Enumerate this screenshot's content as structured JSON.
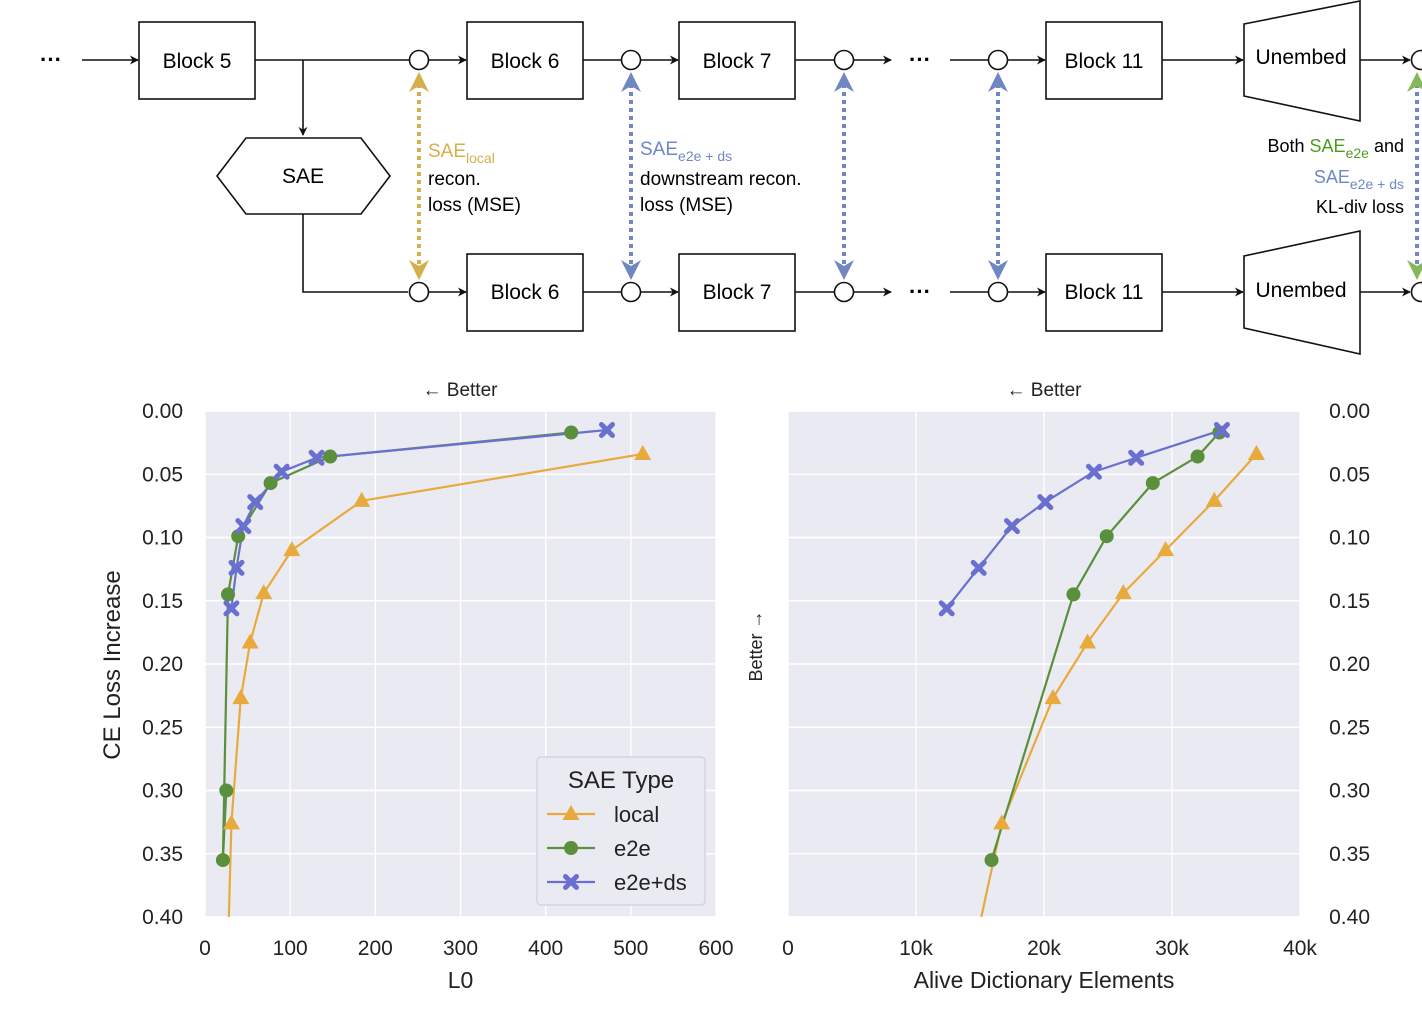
{
  "diagram": {
    "ellipsis": "···",
    "top_blocks": [
      "Block 5",
      "Block 6",
      "Block 7",
      "Block 11"
    ],
    "bottom_blocks": [
      "Block 6",
      "Block 7",
      "Block 11"
    ],
    "unembed": "Unembed",
    "sae": "SAE",
    "ann_local": {
      "main": "SAE",
      "sub": "local",
      "line2": "recon.",
      "line3": "loss (MSE)"
    },
    "ann_ds": {
      "main": "SAE",
      "sub": "e2e + ds",
      "line2": "downstream recon.",
      "line3": "loss (MSE)"
    },
    "ann_kl": {
      "both": "Both",
      "sae_e2e": "SAE",
      "sub_e2e": "e2e",
      "and": "and",
      "sae_ds": "SAE",
      "sub_ds": "e2e + ds",
      "line3": "KL-div loss"
    },
    "colors": {
      "local": "#d4b04a",
      "ds": "#6f88c4",
      "e2e": "#6fa83a",
      "green_text": "#4e9c1c"
    }
  },
  "labels": {
    "better_left": "← Better",
    "better_right": "← Better",
    "better_vertical": "Better →"
  },
  "chart_data": [
    {
      "type": "line",
      "xlabel": "L0",
      "ylabel": "CE Loss Increase",
      "xlim": [
        0,
        600
      ],
      "ylim": [
        0.4,
        0.0
      ],
      "y_inverted": true,
      "grid": true,
      "xticks": [
        "0",
        "100",
        "200",
        "300",
        "400",
        "500",
        "600"
      ],
      "xtick_values": [
        0,
        100,
        200,
        300,
        400,
        500,
        600
      ],
      "yticks": [
        "0.00",
        "0.05",
        "0.10",
        "0.15",
        "0.20",
        "0.25",
        "0.30",
        "0.35",
        "0.40"
      ],
      "ytick_values": [
        0.0,
        0.05,
        0.1,
        0.15,
        0.2,
        0.25,
        0.3,
        0.35,
        0.4
      ],
      "legend": {
        "title": "SAE Type",
        "placement": "lower-right"
      },
      "series": [
        {
          "name": "local",
          "color": "#e8aa3c",
          "marker": "triangle",
          "points": [
            [
              28,
              0.4
            ],
            [
              31,
              0.326
            ],
            [
              42,
              0.227
            ],
            [
              53,
              0.183
            ],
            [
              69,
              0.144
            ],
            [
              102,
              0.11
            ],
            [
              184,
              0.071
            ],
            [
              514,
              0.034
            ]
          ]
        },
        {
          "name": "e2e",
          "color": "#5a8f3c",
          "marker": "circle",
          "points": [
            [
              25,
              0.3
            ],
            [
              21,
              0.355
            ],
            [
              27,
              0.145
            ],
            [
              39,
              0.099
            ],
            [
              77,
              0.057
            ],
            [
              147,
              0.036
            ],
            [
              430,
              0.017
            ]
          ]
        },
        {
          "name": "e2e+ds",
          "color": "#6a70cf",
          "marker": "x",
          "points": [
            [
              31,
              0.156
            ],
            [
              37,
              0.124
            ],
            [
              45,
              0.091
            ],
            [
              59,
              0.072
            ],
            [
              90,
              0.048
            ],
            [
              131,
              0.037
            ],
            [
              472,
              0.015
            ]
          ]
        }
      ]
    },
    {
      "type": "line",
      "xlabel": "Alive Dictionary Elements",
      "ylabel": "",
      "xlim": [
        0,
        40000
      ],
      "ylim": [
        0.4,
        0.0
      ],
      "y_inverted": true,
      "grid": true,
      "xticks": [
        "0",
        "10k",
        "20k",
        "30k",
        "40k"
      ],
      "xtick_values": [
        0,
        10000,
        20000,
        30000,
        40000
      ],
      "yticks": [
        "0.00",
        "0.05",
        "0.10",
        "0.15",
        "0.20",
        "0.25",
        "0.30",
        "0.35",
        "0.40"
      ],
      "ytick_values": [
        0.0,
        0.05,
        0.1,
        0.15,
        0.2,
        0.25,
        0.3,
        0.35,
        0.4
      ],
      "series": [
        {
          "name": "local",
          "color": "#e8aa3c",
          "marker": "triangle",
          "points": [
            [
              15100,
              0.4
            ],
            [
              16700,
              0.326
            ],
            [
              20700,
              0.227
            ],
            [
              23400,
              0.183
            ],
            [
              26200,
              0.144
            ],
            [
              29500,
              0.11
            ],
            [
              33300,
              0.071
            ],
            [
              36600,
              0.034
            ]
          ]
        },
        {
          "name": "e2e",
          "color": "#5a8f3c",
          "marker": "circle",
          "points": [
            [
              15900,
              0.355
            ],
            [
              22300,
              0.145
            ],
            [
              24900,
              0.099
            ],
            [
              28500,
              0.057
            ],
            [
              32000,
              0.036
            ],
            [
              33700,
              0.017
            ]
          ]
        },
        {
          "name": "e2e+ds",
          "color": "#6a70cf",
          "marker": "x",
          "points": [
            [
              12400,
              0.156
            ],
            [
              14900,
              0.124
            ],
            [
              17500,
              0.091
            ],
            [
              20100,
              0.072
            ],
            [
              23900,
              0.048
            ],
            [
              27200,
              0.037
            ],
            [
              33900,
              0.015
            ]
          ]
        }
      ]
    }
  ]
}
